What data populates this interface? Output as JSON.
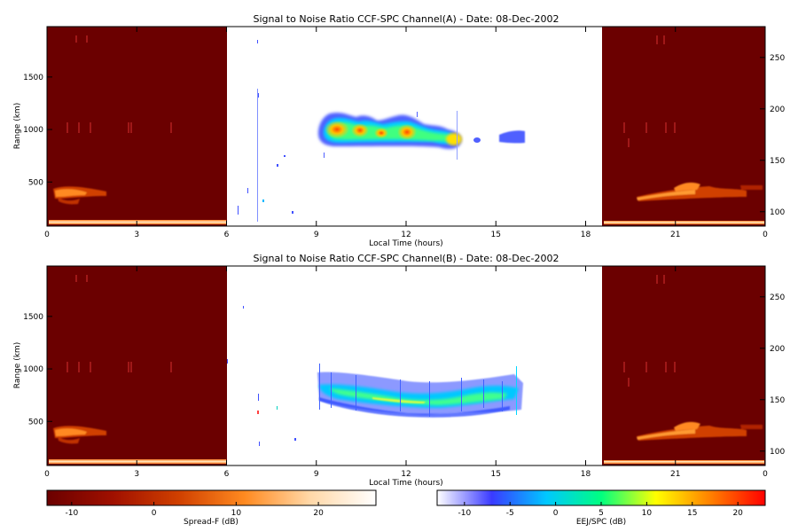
{
  "chart_data": [
    {
      "type": "heatmap",
      "title": "Signal to Noise Ratio CCF-SPC Channel(A) - Date: 08-Dec-2002",
      "xlabel": "Local Time (hours)",
      "ylabel": "Range (km)",
      "x_ticks": [
        "0",
        "3",
        "6",
        "9",
        "12",
        "15",
        "18",
        "21",
        "0"
      ],
      "x_tick_positions_hours": [
        0,
        3,
        6,
        9,
        12,
        15,
        18,
        21,
        24
      ],
      "xlim": [
        0,
        24
      ],
      "y_ticks": [
        "500",
        "1000",
        "1500"
      ],
      "y_tick_values": [
        500,
        1000,
        1500
      ],
      "ylim": [
        80,
        1980
      ],
      "y2_ticks": [
        "100",
        "150",
        "200",
        "250"
      ],
      "y2_tick_values": [
        100,
        150,
        200,
        250
      ],
      "y2lim": [
        86,
        280
      ],
      "spread_f_blocks": [
        {
          "x": [
            0,
            6
          ],
          "colormap": "spread-f"
        },
        {
          "x": [
            18.5,
            24
          ],
          "colormap": "spread-f"
        }
      ],
      "echo_regions": [
        {
          "x": [
            9.0,
            13.9
          ],
          "range_km": [
            830,
            1180
          ],
          "peak_snr_db": 20
        },
        {
          "x": [
            14.2,
            14.5
          ],
          "range_km": [
            930,
            980
          ],
          "peak_snr_db": -6
        },
        {
          "x": [
            15.0,
            16.0
          ],
          "range_km": [
            880,
            980
          ],
          "peak_snr_db": -5
        }
      ],
      "grid": false
    },
    {
      "type": "heatmap",
      "title": "Signal to Noise Ratio CCF-SPC Channel(B) - Date: 08-Dec-2002",
      "xlabel": "Local Time (hours)",
      "ylabel": "Range (km)",
      "x_ticks": [
        "0",
        "3",
        "6",
        "9",
        "12",
        "15",
        "18",
        "21",
        "0"
      ],
      "x_tick_positions_hours": [
        0,
        3,
        6,
        9,
        12,
        15,
        18,
        21,
        24
      ],
      "xlim": [
        0,
        24
      ],
      "y_ticks": [
        "500",
        "1000",
        "1500"
      ],
      "y_tick_values": [
        500,
        1000,
        1500
      ],
      "ylim": [
        80,
        1980
      ],
      "y2_ticks": [
        "100",
        "150",
        "200",
        "250"
      ],
      "y2_tick_values": [
        100,
        150,
        200,
        250
      ],
      "y2lim": [
        86,
        280
      ],
      "spread_f_blocks": [
        {
          "x": [
            0,
            6
          ],
          "colormap": "spread-f"
        },
        {
          "x": [
            18.5,
            24
          ],
          "colormap": "spread-f"
        }
      ],
      "echo_regions": [
        {
          "x": [
            9.0,
            15.8
          ],
          "range_km": [
            600,
            1000
          ],
          "peak_snr_db": 14
        }
      ],
      "grid": false
    }
  ],
  "colorbars": [
    {
      "label": "Spread-F (dB)",
      "ticks": [
        "-10",
        "0",
        "10",
        "20"
      ],
      "tick_values": [
        -10,
        0,
        10,
        20
      ],
      "range": [
        -13,
        27
      ],
      "colors": [
        "#6b0000",
        "#a01000",
        "#d04000",
        "#ff8a20",
        "#ffd8a8",
        "#ffffff"
      ]
    },
    {
      "label": "EEJ/SPC (dB)",
      "ticks": [
        "-10",
        "-5",
        "0",
        "5",
        "10",
        "15",
        "20"
      ],
      "tick_values": [
        -10,
        -5,
        0,
        5,
        10,
        15,
        20
      ],
      "range": [
        -13,
        23
      ],
      "colors": [
        "#ffffff",
        "#3a3aff",
        "#00c8ff",
        "#00ff80",
        "#ffff00",
        "#ff8000",
        "#ff0000"
      ]
    }
  ]
}
